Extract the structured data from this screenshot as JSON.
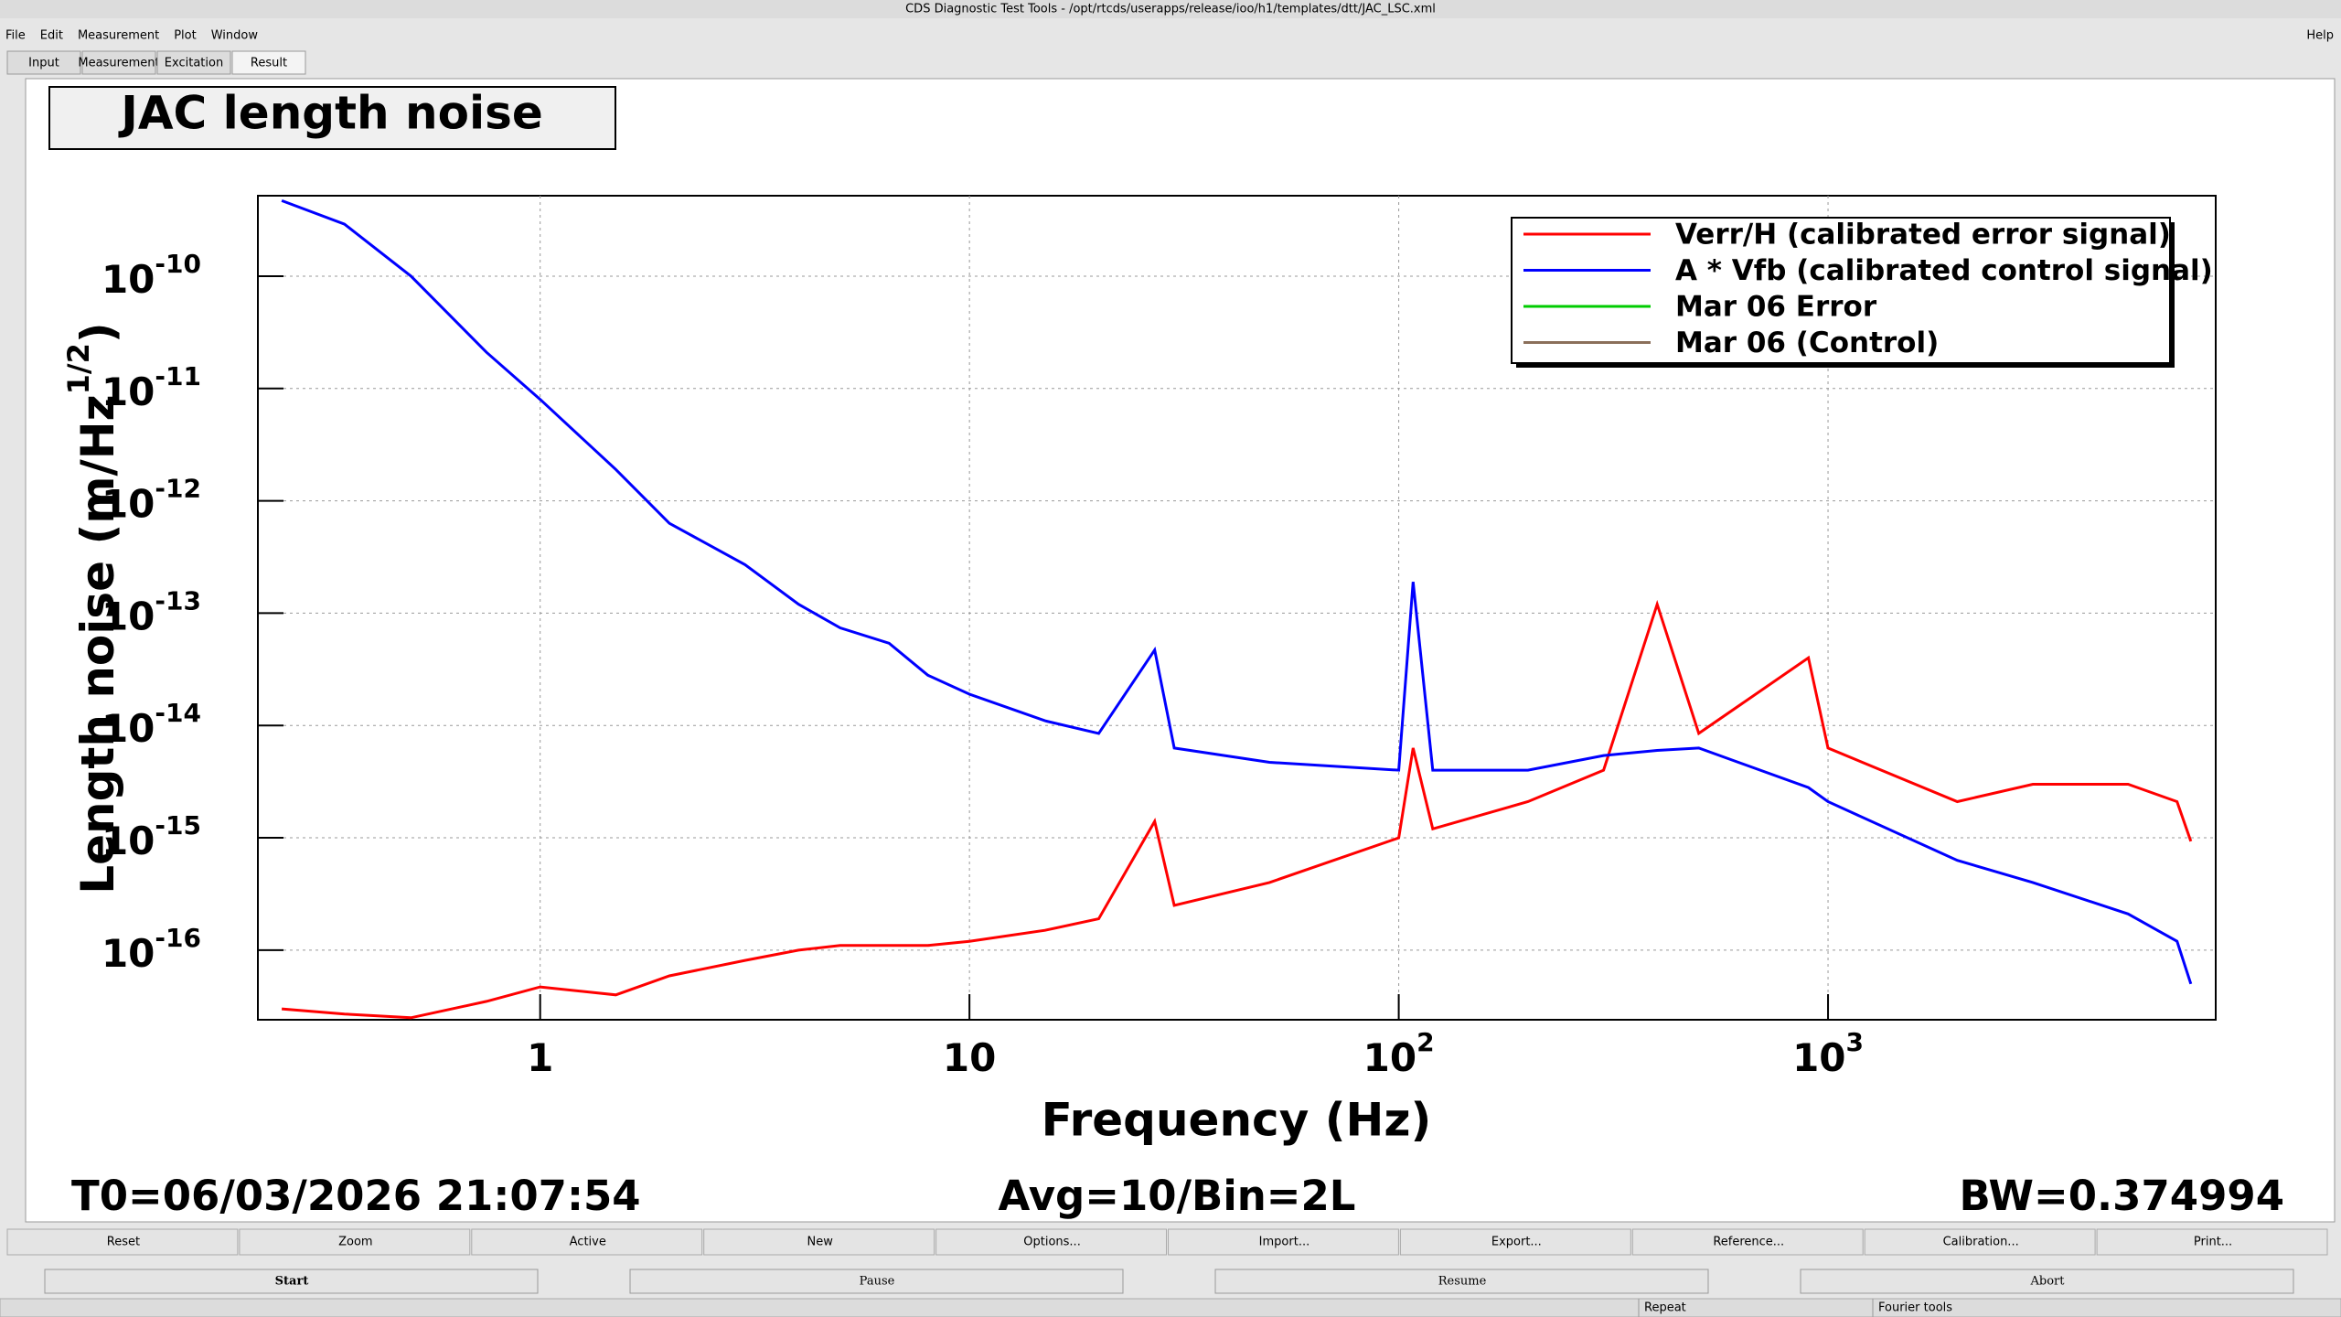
{
  "window": {
    "title": "CDS Diagnostic Test Tools - /opt/rtcds/userapps/release/ioo/h1/templates/dtt/JAC_LSC.xml",
    "menu": [
      "File",
      "Edit",
      "Measurement",
      "Plot",
      "Window"
    ],
    "help": "Help",
    "tabs": [
      "Input",
      "Measurement",
      "Excitation",
      "Result"
    ],
    "buttons": [
      "Reset",
      "Zoom",
      "Active",
      "New",
      "Options...",
      "Import...",
      "Export...",
      "Reference...",
      "Calibration...",
      "Print..."
    ],
    "controls": [
      "Start",
      "Pause",
      "Resume",
      "Abort"
    ],
    "status": [
      "Repeat",
      "Fourier tools"
    ]
  },
  "info": {
    "t0": "T0=06/03/2026 21:07:54",
    "avg": "Avg=10/Bin=2L",
    "bw": "BW=0.374994"
  },
  "chart_data": {
    "type": "line",
    "title": "JAC length noise",
    "xlabel": "Frequency (Hz)",
    "ylabel": "Length noise (m/Hz",
    "ylabel_sup": "1/2",
    "ylabel_end": ")",
    "logx": true,
    "logy": true,
    "grid": true,
    "legend": "upper right",
    "xlim": [
      0.22,
      8000
    ],
    "ylim": [
      2.4e-17,
      5.2e-10
    ],
    "xticks": [
      1,
      10,
      {
        "value": 100,
        "label": "10",
        "exponent": "2"
      },
      {
        "value": 1000,
        "label": "10",
        "exponent": "3"
      }
    ],
    "yticks": [
      {
        "value": 1e-16,
        "label": "10",
        "exponent": "-16"
      },
      {
        "value": 1e-15,
        "label": "10",
        "exponent": "-15"
      },
      {
        "value": 1e-14,
        "label": "10",
        "exponent": "-14"
      },
      {
        "value": 1e-13,
        "label": "10",
        "exponent": "-13"
      },
      {
        "value": 1e-12,
        "label": "10",
        "exponent": "-12"
      },
      {
        "value": 1e-11,
        "label": "10",
        "exponent": "-11"
      },
      {
        "value": 1e-10,
        "label": "10",
        "exponent": "-10"
      }
    ],
    "x": [
      0.25,
      0.35,
      0.5,
      0.75,
      1,
      1.5,
      2,
      3,
      4,
      5,
      6.5,
      8,
      10,
      15,
      20,
      27,
      30,
      50,
      100,
      108,
      120,
      200,
      300,
      400,
      500,
      900,
      1000,
      2000,
      3000,
      5000,
      6500,
      7000
    ],
    "series": [
      {
        "name": "Verr/H (calibrated error signal)",
        "color": "#ff0000",
        "values": [
          3e-17,
          2.7e-17,
          2.5e-17,
          3.5e-17,
          4.7e-17,
          4e-17,
          5.9e-17,
          8.1e-17,
          1e-16,
          1.1e-16,
          1.1e-16,
          1.1e-16,
          1.2e-16,
          1.5e-16,
          1.9e-16,
          1.4e-15,
          2.5e-16,
          4e-16,
          1e-15,
          6.3e-15,
          1.2e-15,
          2.1e-15,
          4e-15,
          1.2e-13,
          8.5e-15,
          4e-14,
          6.3e-15,
          2.1e-15,
          3e-15,
          3e-15,
          2.1e-15,
          9.3e-16
        ]
      },
      {
        "name": "A * Vfb (calibrated control signal)",
        "color": "#0000ff",
        "values": [
          4.7e-10,
          2.9e-10,
          1e-10,
          2.1e-11,
          8e-12,
          1.9e-12,
          6.3e-13,
          2.7e-13,
          1.2e-13,
          7.4e-14,
          5.4e-14,
          2.8e-14,
          1.9e-14,
          1.1e-14,
          8.5e-15,
          4.7e-14,
          6.3e-15,
          4.7e-15,
          4e-15,
          1.9e-13,
          4e-15,
          4e-15,
          5.4e-15,
          6e-15,
          6.3e-15,
          2.8e-15,
          2.1e-15,
          6.3e-16,
          4e-16,
          2.1e-16,
          1.2e-16,
          5e-17
        ]
      },
      {
        "name": "Mar 06 Error",
        "color": "#00cc00",
        "values": [
          null,
          null,
          null,
          null,
          null,
          null,
          null,
          null,
          null,
          null,
          null,
          null,
          null,
          null,
          null,
          null,
          null,
          null,
          null,
          null,
          null,
          null,
          null,
          null,
          null,
          null,
          null,
          null,
          null,
          null,
          null,
          null
        ]
      },
      {
        "name": "Mar 06 (Control)",
        "color": "#8b6f5a",
        "values": [
          null,
          null,
          null,
          null,
          null,
          null,
          null,
          null,
          null,
          null,
          null,
          null,
          null,
          null,
          null,
          null,
          null,
          null,
          null,
          null,
          null,
          null,
          null,
          null,
          null,
          null,
          null,
          null,
          null,
          null,
          null,
          null
        ]
      }
    ]
  }
}
